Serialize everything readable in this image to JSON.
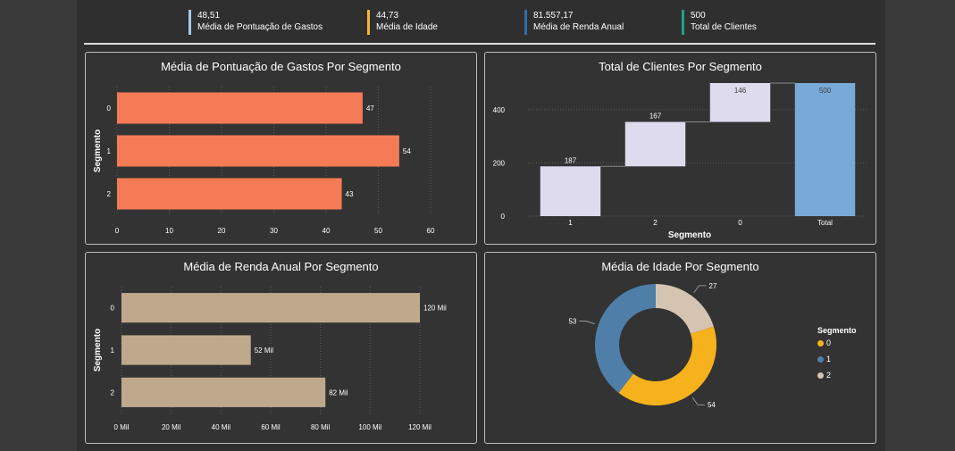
{
  "kpis": [
    {
      "value": "48,51",
      "label": "Média de Pontuação de Gastos",
      "color": "#a6c8ec"
    },
    {
      "value": "44,73",
      "label": "Média de Idade",
      "color": "#f2b630"
    },
    {
      "value": "81.557,17",
      "label": "Média de Renda Anual",
      "color": "#2e6db0"
    },
    {
      "value": "500",
      "label": "Total de Clientes",
      "color": "#1ea38a"
    }
  ],
  "chart_data": [
    {
      "type": "bar",
      "orientation": "horizontal",
      "title": "Média de Pontuação de Gastos Por Segmento",
      "ylabel": "Segmento",
      "categories": [
        "0",
        "1",
        "2"
      ],
      "values": [
        47,
        54,
        43
      ],
      "data_labels": [
        "47",
        "54",
        "43"
      ],
      "xlim": [
        0,
        60
      ],
      "xticks": [
        "0",
        "10",
        "20",
        "30",
        "40",
        "50",
        "60"
      ],
      "color": "#f47b55",
      "grid": true
    },
    {
      "type": "bar",
      "subtype": "waterfall",
      "title": "Total de Clientes Por Segmento",
      "xlabel": "Segmento",
      "categories": [
        "1",
        "2",
        "0",
        "Total"
      ],
      "values": [
        187,
        167,
        146,
        500
      ],
      "data_labels": [
        "187",
        "167",
        "146",
        "500"
      ],
      "ylim": [
        0,
        500
      ],
      "yticks": [
        "0",
        "200",
        "400"
      ],
      "colors": {
        "step": "#dedbef",
        "total": "#78aad8"
      },
      "grid": true
    },
    {
      "type": "bar",
      "orientation": "horizontal",
      "title": "Média de Renda Anual Por Segmento",
      "ylabel": "Segmento",
      "categories": [
        "0",
        "1",
        "2"
      ],
      "values": [
        120,
        52,
        82
      ],
      "data_labels": [
        "120 Mil",
        "52 Mil",
        "82 Mil"
      ],
      "xlim": [
        0,
        120
      ],
      "xticks": [
        "0 Mil",
        "20 Mil",
        "40 Mil",
        "60 Mil",
        "80 Mil",
        "100 Mil",
        "120 Mil"
      ],
      "color": "#bfa98c",
      "grid": true
    },
    {
      "type": "pie",
      "subtype": "donut",
      "title": "Média de Idade Por Segmento",
      "categories": [
        "0",
        "1",
        "2"
      ],
      "values": [
        54,
        53,
        27
      ],
      "data_labels": [
        "54",
        "53",
        "27"
      ],
      "colors": [
        "#f5b21c",
        "#4f7fa8",
        "#d5c4b2"
      ],
      "legend": {
        "title": "Segmento",
        "placement": "right",
        "items": [
          "0",
          "1",
          "2"
        ]
      }
    }
  ]
}
